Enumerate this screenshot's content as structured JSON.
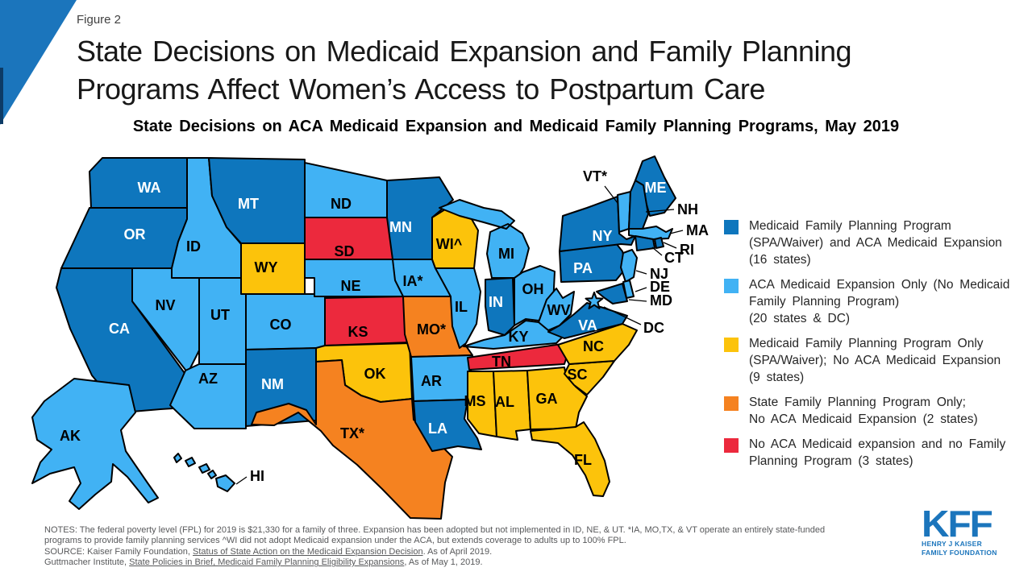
{
  "header": {
    "figure_label": "Figure 2",
    "title_line1": "State Decisions on Medicaid Expansion and Family Planning",
    "title_line2": "Programs Affect Women’s Access to Postpartum Care",
    "map_title": "State Decisions on ACA Medicaid Expansion and Medicaid Family Planning Programs, May 2019"
  },
  "map": {
    "border_color": "#000000",
    "categories": {
      "expansion_and_fp": {
        "color": "#0E76BD",
        "text": "#FFFFFF"
      },
      "expansion_only": {
        "color": "#41B2F4",
        "text": "#000000"
      },
      "fp_only": {
        "color": "#FCC30B",
        "text": "#000000"
      },
      "state_fp_only": {
        "color": "#F58220",
        "text": "#000000"
      },
      "none": {
        "color": "#EC293D",
        "text": "#000000"
      }
    },
    "states": [
      {
        "id": "WA",
        "label": "WA",
        "category": "expansion_and_fp"
      },
      {
        "id": "OR",
        "label": "OR",
        "category": "expansion_and_fp"
      },
      {
        "id": "CA",
        "label": "CA",
        "category": "expansion_and_fp"
      },
      {
        "id": "ID",
        "label": "ID",
        "category": "expansion_only"
      },
      {
        "id": "NV",
        "label": "NV",
        "category": "expansion_only"
      },
      {
        "id": "UT",
        "label": "UT",
        "category": "expansion_only"
      },
      {
        "id": "AZ",
        "label": "AZ",
        "category": "expansion_only"
      },
      {
        "id": "MT",
        "label": "MT",
        "category": "expansion_and_fp"
      },
      {
        "id": "WY",
        "label": "WY",
        "category": "fp_only"
      },
      {
        "id": "CO",
        "label": "CO",
        "category": "expansion_only"
      },
      {
        "id": "NM",
        "label": "NM",
        "category": "expansion_and_fp"
      },
      {
        "id": "ND",
        "label": "ND",
        "category": "expansion_only"
      },
      {
        "id": "SD",
        "label": "SD",
        "category": "none"
      },
      {
        "id": "NE",
        "label": "NE",
        "category": "expansion_only"
      },
      {
        "id": "KS",
        "label": "KS",
        "category": "none"
      },
      {
        "id": "OK",
        "label": "OK",
        "category": "fp_only"
      },
      {
        "id": "TX",
        "label": "TX*",
        "category": "state_fp_only"
      },
      {
        "id": "MN",
        "label": "MN",
        "category": "expansion_and_fp"
      },
      {
        "id": "IA",
        "label": "IA*",
        "category": "expansion_only"
      },
      {
        "id": "MO",
        "label": "MO*",
        "category": "state_fp_only"
      },
      {
        "id": "AR",
        "label": "AR",
        "category": "expansion_only"
      },
      {
        "id": "LA",
        "label": "LA",
        "category": "expansion_and_fp"
      },
      {
        "id": "WI",
        "label": "WI^",
        "category": "fp_only"
      },
      {
        "id": "IL",
        "label": "IL",
        "category": "expansion_only"
      },
      {
        "id": "MS",
        "label": "MS",
        "category": "fp_only"
      },
      {
        "id": "MI",
        "label": "MI",
        "category": "expansion_only"
      },
      {
        "id": "IN",
        "label": "IN",
        "category": "expansion_and_fp"
      },
      {
        "id": "OH",
        "label": "OH",
        "category": "expansion_only"
      },
      {
        "id": "KY",
        "label": "KY",
        "category": "expansion_only"
      },
      {
        "id": "TN",
        "label": "TN",
        "category": "none"
      },
      {
        "id": "AL",
        "label": "AL",
        "category": "fp_only"
      },
      {
        "id": "GA",
        "label": "GA",
        "category": "fp_only"
      },
      {
        "id": "FL",
        "label": "FL",
        "category": "fp_only"
      },
      {
        "id": "SC",
        "label": "SC",
        "category": "fp_only"
      },
      {
        "id": "NC",
        "label": "NC",
        "category": "fp_only"
      },
      {
        "id": "VA",
        "label": "VA",
        "category": "expansion_and_fp"
      },
      {
        "id": "WV",
        "label": "WV",
        "category": "expansion_only"
      },
      {
        "id": "PA",
        "label": "PA",
        "category": "expansion_and_fp"
      },
      {
        "id": "NY",
        "label": "NY",
        "category": "expansion_and_fp"
      },
      {
        "id": "ME",
        "label": "ME",
        "category": "expansion_and_fp"
      },
      {
        "id": "VT",
        "label": "VT*",
        "category": "expansion_only"
      },
      {
        "id": "NH",
        "label": "NH",
        "category": "expansion_and_fp"
      },
      {
        "id": "MA",
        "label": "MA",
        "category": "expansion_only"
      },
      {
        "id": "RI",
        "label": "RI",
        "category": "expansion_and_fp"
      },
      {
        "id": "CT",
        "label": "CT",
        "category": "expansion_and_fp"
      },
      {
        "id": "NJ",
        "label": "NJ",
        "category": "expansion_only"
      },
      {
        "id": "DE",
        "label": "DE",
        "category": "expansion_only"
      },
      {
        "id": "MD",
        "label": "MD",
        "category": "expansion_and_fp"
      },
      {
        "id": "DC",
        "label": "DC",
        "category": "expansion_only"
      },
      {
        "id": "AK",
        "label": "AK",
        "category": "expansion_only"
      },
      {
        "id": "HI",
        "label": "HI",
        "category": "expansion_only"
      }
    ]
  },
  "legend": [
    {
      "category": "expansion_and_fp",
      "text": "Medicaid Family Planning Program\n(SPA/Waiver) and ACA Medicaid Expansion\n(16 states)"
    },
    {
      "category": "expansion_only",
      "text": "ACA Medicaid Expansion Only (No Medicaid\nFamily Planning Program)\n(20 states & DC)"
    },
    {
      "category": "fp_only",
      "text": "Medicaid Family Planning Program Only\n(SPA/Waiver); No ACA Medicaid Expansion\n(9 states)"
    },
    {
      "category": "state_fp_only",
      "text": "State Family Planning Program Only;\nNo ACA Medicaid Expansion (2 states)"
    },
    {
      "category": "none",
      "text": "No ACA Medicaid expansion and no Family\nPlanning Program (3 states)"
    }
  ],
  "notes": {
    "line1": "NOTES: The federal poverty level (FPL) for 2019 is $21,330 for a family of three. Expansion has been adopted but not implemented in ID, NE, & UT. *IA, MO,TX,  & VT  operate an entirely state-funded",
    "line2": "programs to provide family planning services ^WI did not adopt Medicaid expansion under the ACA,  but extends coverage to adults up to 100% FPL.",
    "source_prefix": "SOURCE: Kaiser Family Foundation, ",
    "source_link": "Status of State Action on the Medicaid Expansion Decision",
    "source_suffix": ". As of April 2019.",
    "gutt_prefix": "Guttmacher Institute, ",
    "gutt_link": "State Policies in Brief, Medicaid Family Planning Eligibility Expansions",
    "gutt_suffix": ", As of May  1, 2019."
  },
  "logo": {
    "text": "KFF",
    "line1": "HENRY J KAISER",
    "line2": "FAMILY FOUNDATION"
  }
}
